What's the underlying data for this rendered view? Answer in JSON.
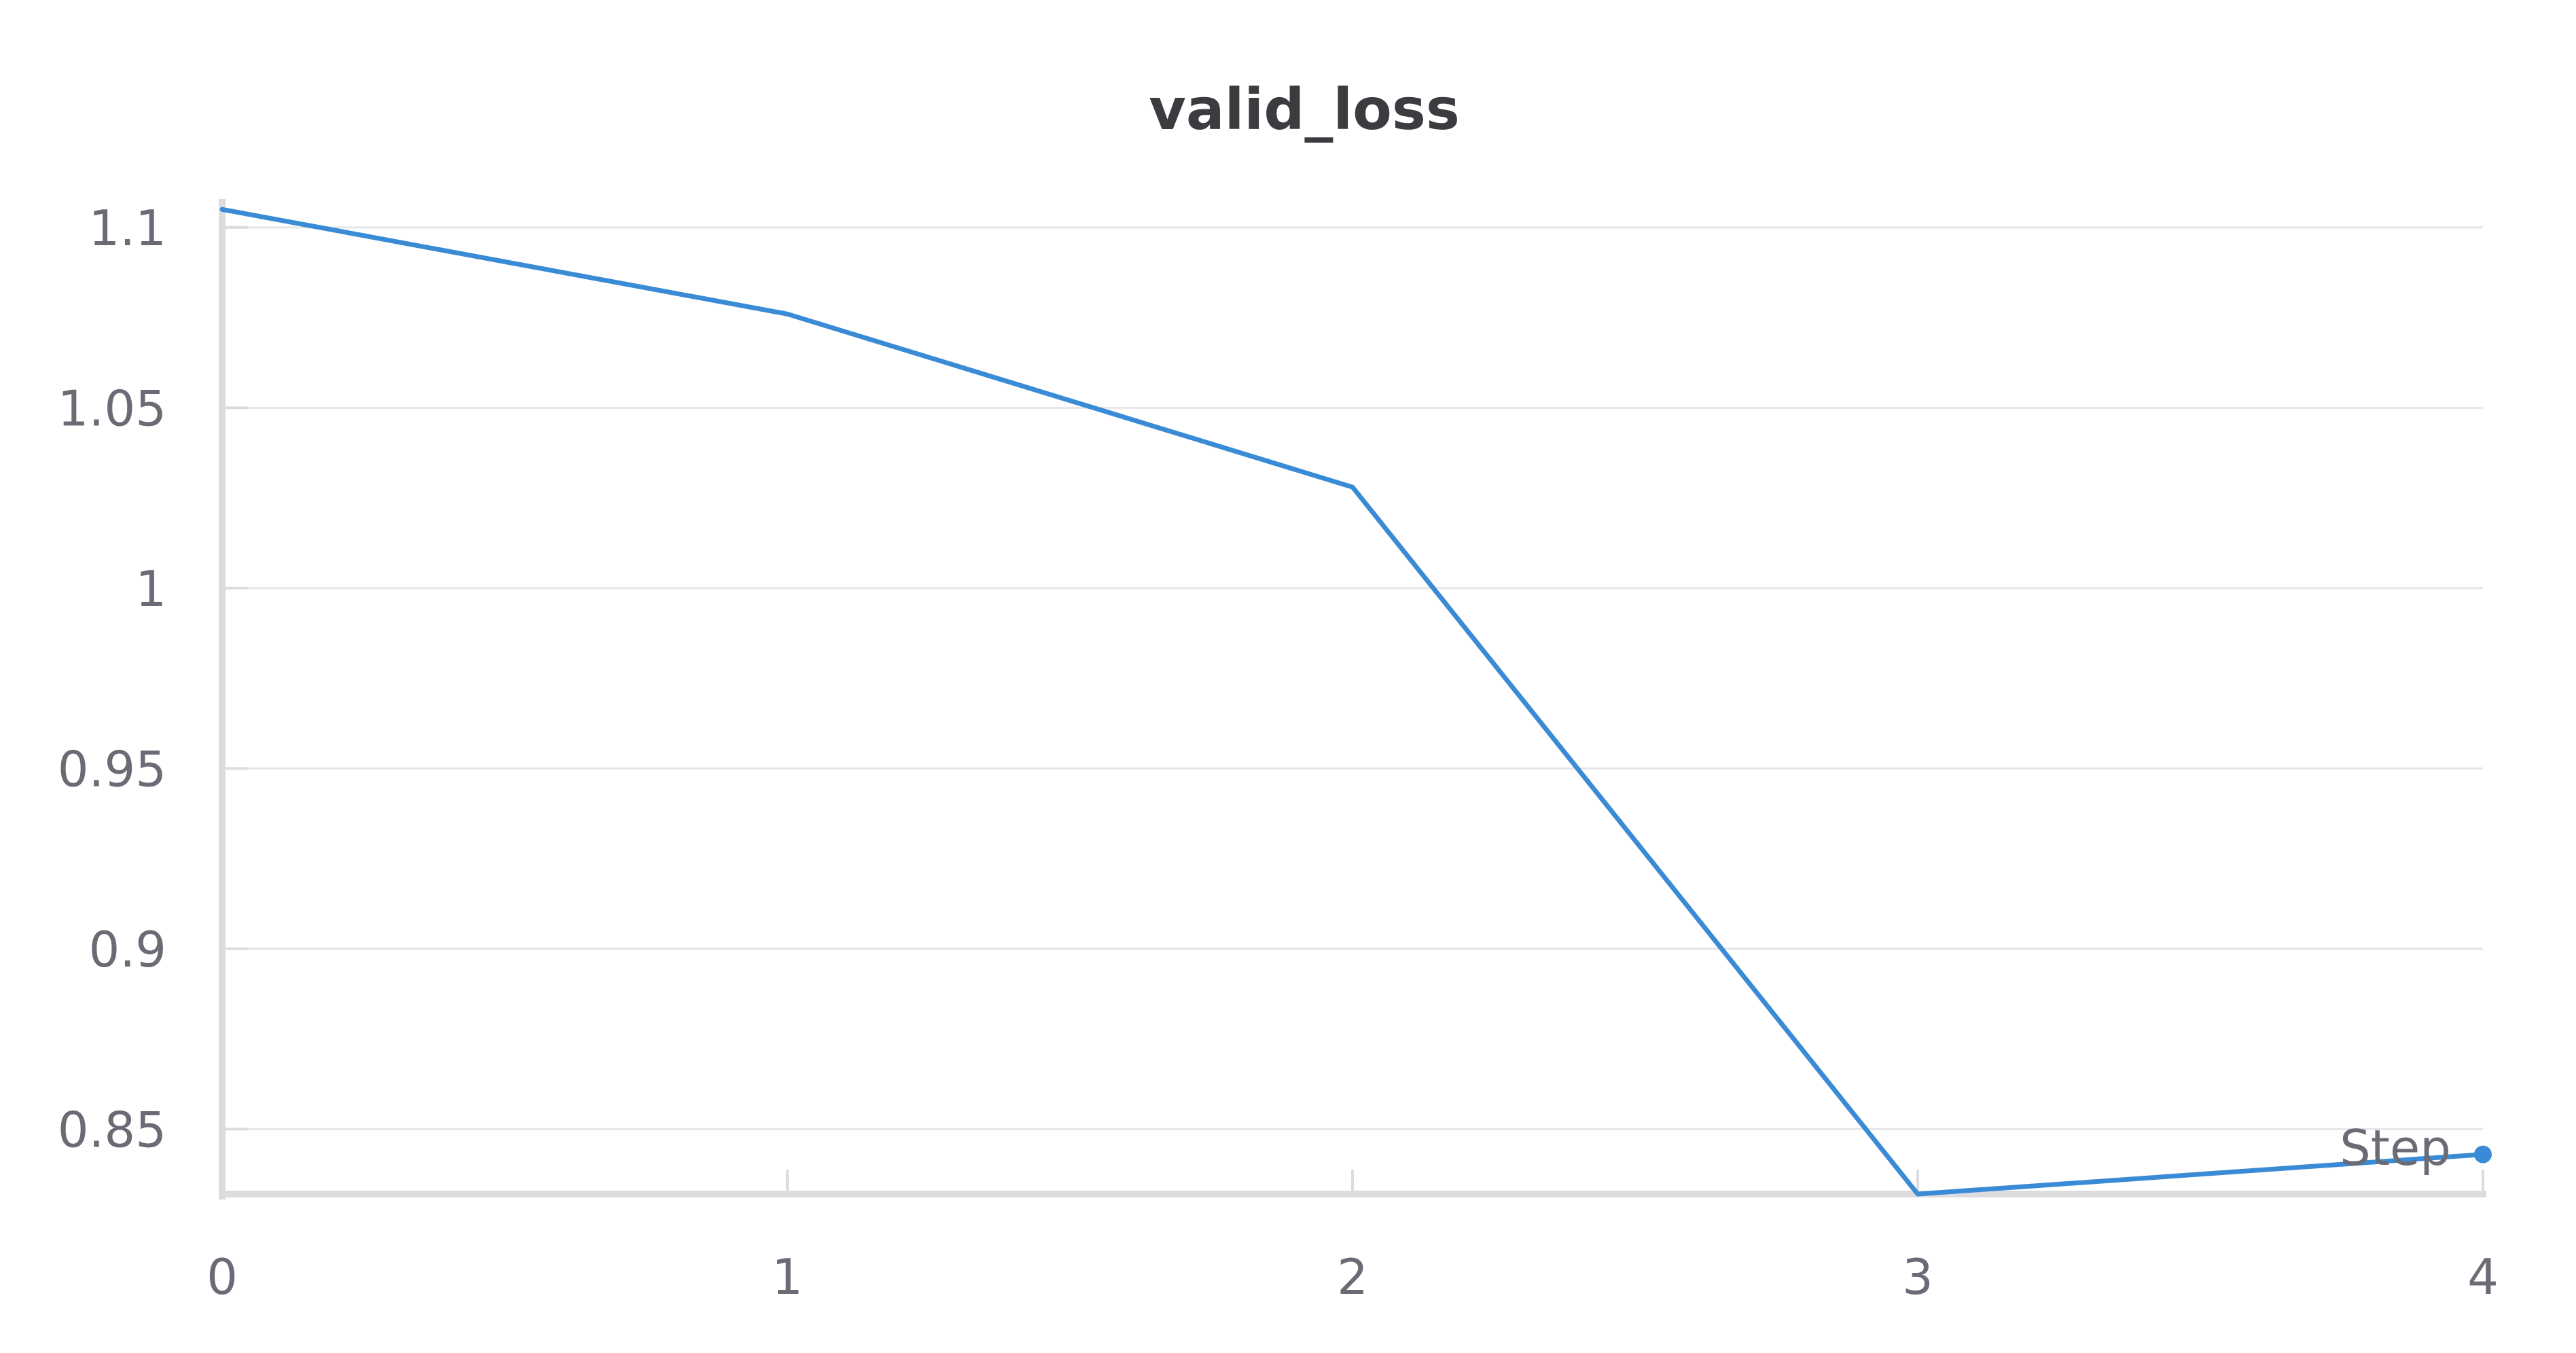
{
  "chart_data": {
    "type": "line",
    "title": "valid_loss",
    "xlabel": "Step",
    "ylabel": "",
    "x": [
      0,
      1,
      2,
      3,
      4
    ],
    "xlim": [
      0,
      4
    ],
    "ylim": [
      0.832,
      1.106
    ],
    "xticks": [
      0,
      1,
      2,
      3,
      4
    ],
    "xtick_labels": [
      "0",
      "1",
      "2",
      "3",
      "4"
    ],
    "yticks": [
      0.85,
      0.9,
      0.95,
      1.0,
      1.05,
      1.1
    ],
    "ytick_labels": [
      "0.85",
      "0.9",
      "0.95",
      "1",
      "1.05",
      "1.1"
    ],
    "grid": true,
    "series": [
      {
        "values": [
          1.105,
          1.076,
          1.028,
          0.832,
          0.843
        ],
        "color": "#3a8bd6"
      }
    ],
    "colors": {
      "line": "#3a8bd6",
      "grid": "#e6e6e9",
      "axis": "#dcdcdf",
      "tick_text": "#6b6b76",
      "title_text": "#3b3b40"
    }
  }
}
